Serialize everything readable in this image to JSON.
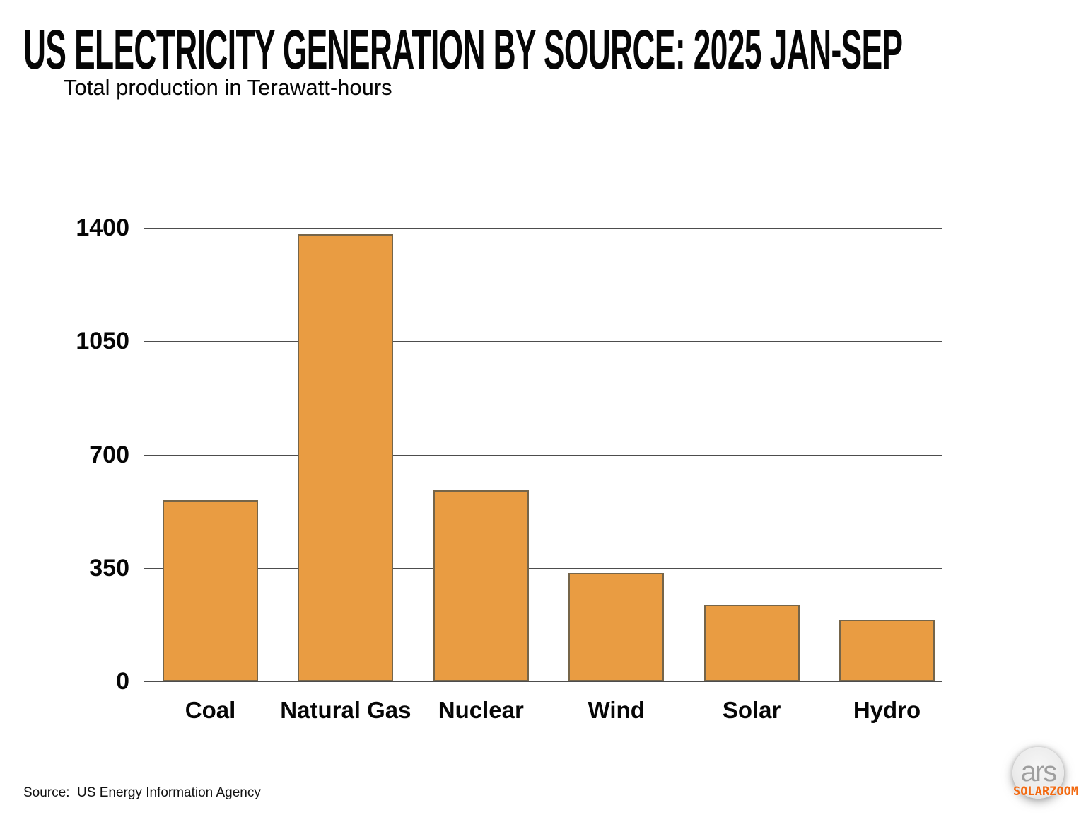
{
  "header": {
    "title": "US ELECTRICITY GENERATION BY SOURCE: 2025 JAN-SEP",
    "subtitle": "Total production in Terawatt-hours"
  },
  "footer": {
    "source": "Source:  US Energy Information Agency",
    "logo_text": "ars",
    "watermark": "SOLARZOOM"
  },
  "colors": {
    "bar_fill": "#E99C42",
    "bar_border": "#75654A",
    "gridline": "#4D4D4D",
    "watermark_orange": "#F26A12",
    "logo_gray": "#9E9E9E",
    "text_black": "#060606"
  },
  "chart_data": {
    "type": "bar",
    "categories": [
      "Coal",
      "Natural Gas",
      "Nuclear",
      "Wind",
      "Solar",
      "Hydro"
    ],
    "values": [
      560,
      1380,
      590,
      335,
      235,
      190
    ],
    "unit": "Terawatt-hours",
    "title": "US ELECTRICITY GENERATION BY SOURCE: 2025 JAN-SEP",
    "subtitle": "Total production in Terawatt-hours",
    "ylabel": "Total production in Terawatt-hours",
    "ylim": [
      0,
      1400
    ],
    "yticks": [
      0,
      350,
      700,
      1050,
      1400
    ],
    "grid": true,
    "legend": false,
    "bar_color": "#E99C42"
  }
}
